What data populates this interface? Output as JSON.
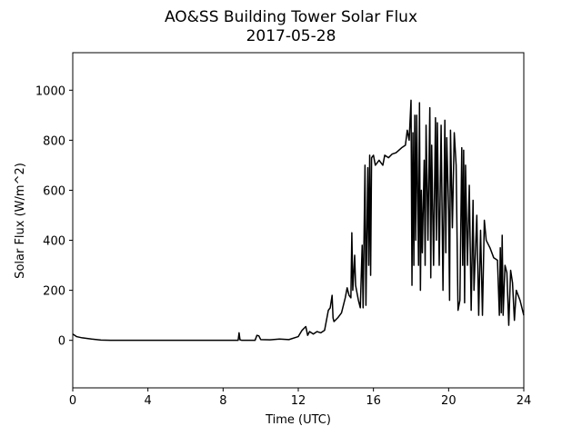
{
  "chart_data": {
    "type": "line",
    "title": "AO&SS Building Tower Solar Flux",
    "subtitle": "2017-05-28",
    "x_label": "Time (UTC)",
    "y_label": "Solar Flux (W/m^2)",
    "xlim": [
      0,
      24
    ],
    "xticks": [
      0,
      4,
      8,
      12,
      16,
      20,
      24
    ],
    "ylim": [
      -190,
      1150
    ],
    "yticks": [
      0,
      200,
      400,
      600,
      800,
      1000
    ],
    "grid": false,
    "series": [
      {
        "name": "Solar Flux",
        "color": "#000000",
        "x": [
          0,
          0.2,
          0.5,
          1,
          1.5,
          2,
          4,
          8,
          8.8,
          8.85,
          8.9,
          9,
          9.7,
          9.8,
          9.9,
          10,
          10.5,
          11,
          11.5,
          12,
          12.2,
          12.4,
          12.5,
          12.6,
          12.8,
          13,
          13.2,
          13.4,
          13.6,
          13.7,
          13.8,
          13.85,
          13.9,
          14.1,
          14.3,
          14.5,
          14.6,
          14.7,
          14.8,
          14.85,
          14.9,
          15.0,
          15.05,
          15.2,
          15.3,
          15.4,
          15.45,
          15.55,
          15.6,
          15.7,
          15.75,
          15.8,
          15.85,
          15.9,
          16,
          16.1,
          16.3,
          16.5,
          16.6,
          16.8,
          17,
          17.2,
          17.5,
          17.7,
          17.8,
          17.9,
          18,
          18.05,
          18.1,
          18.15,
          18.2,
          18.25,
          18.3,
          18.4,
          18.45,
          18.5,
          18.55,
          18.6,
          18.7,
          18.75,
          18.8,
          18.9,
          19,
          19.05,
          19.1,
          19.2,
          19.3,
          19.35,
          19.4,
          19.5,
          19.6,
          19.7,
          19.8,
          19.85,
          19.9,
          20,
          20.05,
          20.1,
          20.2,
          20.3,
          20.4,
          20.5,
          20.6,
          20.7,
          20.75,
          20.8,
          20.85,
          20.9,
          21,
          21.1,
          21.2,
          21.3,
          21.35,
          21.5,
          21.6,
          21.7,
          21.8,
          21.9,
          22,
          22.2,
          22.4,
          22.6,
          22.7,
          22.75,
          22.8,
          22.85,
          22.9,
          23,
          23.1,
          23.2,
          23.3,
          23.4,
          23.5,
          23.6,
          23.8,
          24
        ],
        "values": [
          25,
          15,
          10,
          5,
          1,
          0,
          0,
          0,
          0,
          30,
          2,
          0,
          0,
          20,
          18,
          3,
          2,
          5,
          3,
          15,
          40,
          55,
          20,
          35,
          25,
          35,
          30,
          40,
          120,
          130,
          180,
          90,
          75,
          90,
          110,
          170,
          210,
          180,
          170,
          430,
          200,
          340,
          220,
          160,
          130,
          380,
          130,
          700,
          140,
          690,
          300,
          740,
          260,
          730,
          740,
          700,
          720,
          700,
          740,
          730,
          745,
          750,
          770,
          780,
          840,
          800,
          960,
          220,
          830,
          300,
          900,
          400,
          900,
          300,
          950,
          200,
          600,
          350,
          720,
          300,
          860,
          400,
          930,
          250,
          780,
          300,
          890,
          400,
          870,
          300,
          860,
          200,
          880,
          350,
          810,
          520,
          160,
          840,
          450,
          830,
          700,
          120,
          160,
          770,
          300,
          760,
          150,
          700,
          300,
          620,
          120,
          560,
          200,
          500,
          100,
          440,
          100,
          480,
          400,
          370,
          330,
          320,
          100,
          370,
          110,
          420,
          100,
          300,
          270,
          60,
          280,
          230,
          80,
          200,
          160,
          100
        ]
      }
    ]
  }
}
